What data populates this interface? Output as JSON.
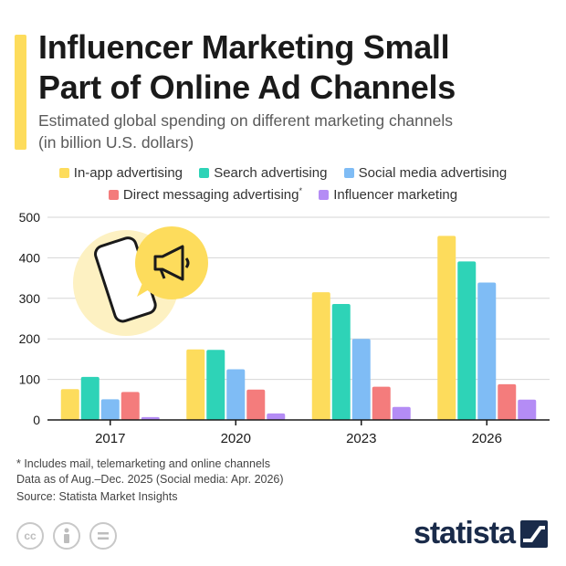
{
  "header": {
    "title_line1": "Influencer Marketing Small",
    "title_line2": "Part of Online Ad Channels",
    "subtitle_line1": "Estimated global spending on different marketing channels",
    "subtitle_line2": "(in billion U.S. dollars)"
  },
  "legend": {
    "items": [
      {
        "label": "In-app advertising",
        "color": "#fddc5c"
      },
      {
        "label": "Search advertising",
        "color": "#2ed3b7"
      },
      {
        "label": "Social media advertising",
        "color": "#7fbcf5"
      },
      {
        "label": "Direct messaging advertising",
        "marker": "*",
        "color": "#f47c7c"
      },
      {
        "label": "Influencer marketing",
        "color": "#b48cf5"
      }
    ]
  },
  "chart_data": {
    "type": "bar",
    "categories": [
      "2017",
      "2020",
      "2023",
      "2026"
    ],
    "series": [
      {
        "name": "In-app advertising",
        "color": "#fddc5c",
        "values": [
          76,
          174,
          315,
          454
        ]
      },
      {
        "name": "Search advertising",
        "color": "#2ed3b7",
        "values": [
          106,
          173,
          286,
          391
        ]
      },
      {
        "name": "Social media advertising",
        "color": "#7fbcf5",
        "values": [
          51,
          125,
          200,
          339
        ]
      },
      {
        "name": "Direct messaging advertising",
        "color": "#f47c7c",
        "values": [
          69,
          75,
          82,
          88
        ]
      },
      {
        "name": "Influencer marketing",
        "color": "#b48cf5",
        "values": [
          7,
          16,
          32,
          50
        ]
      }
    ],
    "ylim": [
      0,
      500
    ],
    "yticks": [
      0,
      100,
      200,
      300,
      400,
      500
    ],
    "grid": true,
    "legend_position": "top"
  },
  "footer": {
    "note": "* Includes mail, telemarketing and online channels",
    "data_as_of": "Data as of Aug.–Dec. 2025 (Social media: Apr. 2026)",
    "source": "Source: Statista Market Insights",
    "brand": "statista",
    "license_icons": [
      "cc-icon",
      "attribution-icon",
      "no-derivatives-icon"
    ]
  }
}
